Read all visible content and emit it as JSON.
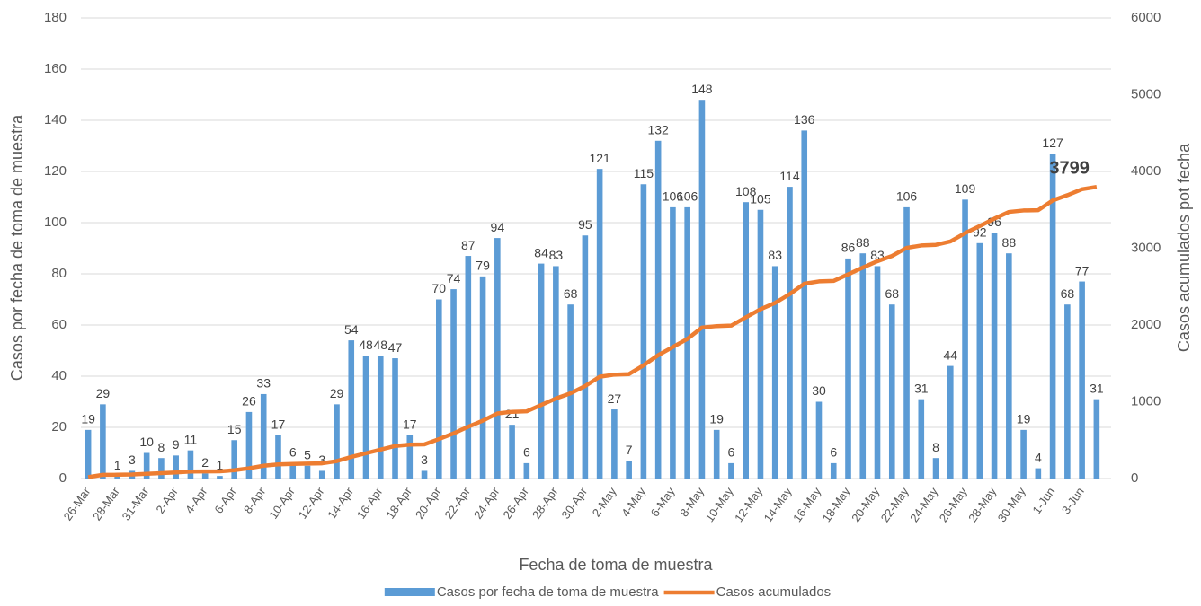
{
  "chart_data": {
    "type": "combo",
    "x_label": "Fecha de toma de muestra",
    "y_label": "Casos por fecha de toma de muestra",
    "y2_label": "Casos acumulados pot fecha",
    "categories": [
      "26-Mar",
      null,
      "28-Mar",
      null,
      "31-Mar",
      null,
      "2-Apr",
      null,
      "4-Apr",
      null,
      "6-Apr",
      null,
      "8-Apr",
      null,
      "10-Apr",
      null,
      "12-Apr",
      null,
      "14-Apr",
      null,
      "16-Apr",
      null,
      "18-Apr",
      null,
      "20-Apr",
      null,
      "22-Apr",
      null,
      "24-Apr",
      null,
      "26-Apr",
      null,
      "28-Apr",
      null,
      "30-Apr",
      null,
      "2-May",
      null,
      "4-May",
      null,
      "6-May",
      null,
      "8-May",
      null,
      "10-May",
      null,
      "12-May",
      null,
      "14-May",
      null,
      "16-May",
      null,
      "18-May",
      null,
      "20-May",
      null,
      "22-May",
      null,
      "24-May",
      null,
      "26-May",
      null,
      "28-May",
      null,
      "30-May",
      null,
      "1-Jun",
      null,
      "3-Jun",
      null
    ],
    "series": [
      {
        "name": "Casos por fecha de toma de muestra",
        "type": "bar",
        "color": "#5b9bd5",
        "values": [
          19,
          29,
          1,
          3,
          10,
          8,
          9,
          11,
          2,
          1,
          15,
          26,
          33,
          17,
          6,
          5,
          3,
          29,
          54,
          48,
          48,
          47,
          17,
          3,
          70,
          74,
          87,
          79,
          94,
          21,
          6,
          84,
          83,
          68,
          95,
          121,
          27,
          7,
          115,
          132,
          106,
          106,
          148,
          19,
          6,
          108,
          105,
          83,
          114,
          136,
          30,
          6,
          86,
          88,
          83,
          68,
          106,
          31,
          8,
          44,
          109,
          92,
          96,
          88,
          19,
          4,
          127,
          68,
          77,
          31
        ]
      },
      {
        "name": "Casos acumulados",
        "type": "line",
        "axis": "y2",
        "color": "#ed7d31",
        "values": [
          19,
          48,
          49,
          52,
          62,
          70,
          79,
          90,
          92,
          93,
          108,
          134,
          167,
          184,
          190,
          195,
          198,
          227,
          281,
          329,
          377,
          424,
          441,
          444,
          514,
          588,
          675,
          754,
          848,
          869,
          875,
          959,
          1042,
          1110,
          1205,
          1326,
          1353,
          1360,
          1475,
          1607,
          1713,
          1819,
          1967,
          1986,
          1992,
          2100,
          2205,
          2288,
          2402,
          2538,
          2568,
          2574,
          2660,
          2748,
          2831,
          2899,
          3005,
          3036,
          3044,
          3088,
          3197,
          3289,
          3385,
          3473,
          3492,
          3496,
          3623,
          3691,
          3768,
          3799
        ]
      }
    ],
    "ylim": [
      0,
      180
    ],
    "yticks": [
      0,
      20,
      40,
      60,
      80,
      100,
      120,
      140,
      160,
      180
    ],
    "y2lim": [
      0,
      6000
    ],
    "y2ticks": [
      0,
      1000,
      2000,
      3000,
      4000,
      5000,
      6000
    ],
    "grid": true,
    "legend": "bottom"
  }
}
